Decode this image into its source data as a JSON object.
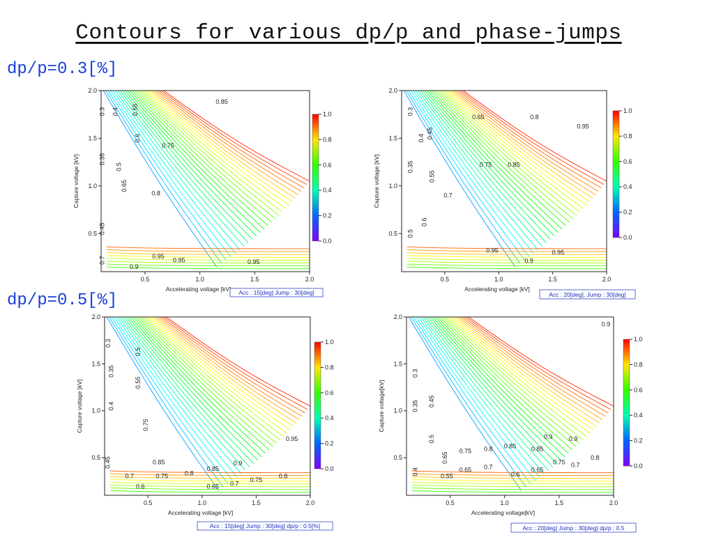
{
  "page": {
    "title": "Contours for various dp/p and phase-jumps"
  },
  "sections": [
    {
      "label": "dp/p=0.3[%]"
    },
    {
      "label": "dp/p=0.5[%]"
    }
  ],
  "chart_data": [
    {
      "type": "contour",
      "xlabel": "Accelerating voltage [kV]",
      "ylabel": "Capture voltage [kV]",
      "xlim": [
        0.1,
        2.0
      ],
      "ylim": [
        0.1,
        2.0
      ],
      "xticks": [
        0.5,
        1.0,
        1.5,
        2.0
      ],
      "yticks": [
        0.5,
        1.0,
        1.5,
        2.0
      ],
      "colorbar": {
        "min": 0.0,
        "max": 1.0,
        "ticks": [
          0.0,
          0.2,
          0.4,
          0.6,
          0.8,
          1.0
        ]
      },
      "caption": "Acc : 15[deg]  Jump : 30[deg]",
      "contour_labels": [
        {
          "text": "0.3",
          "x": 0.13,
          "y": 1.78,
          "rot": -90
        },
        {
          "text": "0.4",
          "x": 0.25,
          "y": 1.78,
          "rot": -90
        },
        {
          "text": "0.55",
          "x": 0.43,
          "y": 1.8,
          "rot": -90
        },
        {
          "text": "0.35",
          "x": 0.13,
          "y": 1.28,
          "rot": -90
        },
        {
          "text": "0.5",
          "x": 0.28,
          "y": 1.2,
          "rot": -90
        },
        {
          "text": "0.6",
          "x": 0.45,
          "y": 1.5,
          "rot": -90
        },
        {
          "text": "0.75",
          "x": 0.71,
          "y": 1.4,
          "rot": 0
        },
        {
          "text": "0.65",
          "x": 0.33,
          "y": 1.0,
          "rot": -90
        },
        {
          "text": "0.8",
          "x": 0.6,
          "y": 0.9,
          "rot": 0
        },
        {
          "text": "0.45",
          "x": 0.13,
          "y": 0.55,
          "rot": -90
        },
        {
          "text": "0.85",
          "x": 1.2,
          "y": 1.86,
          "rot": 0
        },
        {
          "text": "0.7",
          "x": 0.13,
          "y": 0.22,
          "rot": -90
        },
        {
          "text": "0.95",
          "x": 0.62,
          "y": 0.24,
          "rot": 0
        },
        {
          "text": "0.95",
          "x": 0.81,
          "y": 0.2,
          "rot": 0
        },
        {
          "text": "0.95",
          "x": 1.49,
          "y": 0.18,
          "rot": 0
        },
        {
          "text": "0.9",
          "x": 0.4,
          "y": 0.13,
          "rot": 0
        }
      ]
    },
    {
      "type": "contour",
      "xlabel": "Accelerating voltage [kV]",
      "ylabel": "Capture voltage [kV]",
      "xlim": [
        0.1,
        2.0
      ],
      "ylim": [
        0.1,
        2.0
      ],
      "xticks": [
        0.5,
        1.0,
        1.5,
        2.0
      ],
      "yticks": [
        0.5,
        1.0,
        1.5,
        2.0
      ],
      "colorbar": {
        "min": 0.0,
        "max": 1.0,
        "ticks": [
          0.0,
          0.2,
          0.4,
          0.6,
          0.8,
          1.0
        ]
      },
      "caption": "Acc : 20[deg], Jump : 30[deg]",
      "contour_labels": [
        {
          "text": "0.3",
          "x": 0.2,
          "y": 1.78,
          "rot": -90
        },
        {
          "text": "0.4",
          "x": 0.3,
          "y": 1.5,
          "rot": -90
        },
        {
          "text": "0.45",
          "x": 0.38,
          "y": 1.55,
          "rot": -90
        },
        {
          "text": "0.65",
          "x": 0.81,
          "y": 1.7,
          "rot": 0
        },
        {
          "text": "0.8",
          "x": 1.33,
          "y": 1.7,
          "rot": 0
        },
        {
          "text": "0.95",
          "x": 1.78,
          "y": 1.6,
          "rot": 0
        },
        {
          "text": "0.35",
          "x": 0.2,
          "y": 1.2,
          "rot": -90
        },
        {
          "text": "0.75",
          "x": 0.88,
          "y": 1.2,
          "rot": 0
        },
        {
          "text": "0.85",
          "x": 1.14,
          "y": 1.2,
          "rot": 0
        },
        {
          "text": "0.55",
          "x": 0.4,
          "y": 1.1,
          "rot": -90
        },
        {
          "text": "0.7",
          "x": 0.53,
          "y": 0.88,
          "rot": 0
        },
        {
          "text": "0.6",
          "x": 0.33,
          "y": 0.62,
          "rot": -90
        },
        {
          "text": "0.5",
          "x": 0.2,
          "y": 0.5,
          "rot": -90
        },
        {
          "text": "0.95",
          "x": 0.94,
          "y": 0.3,
          "rot": 0
        },
        {
          "text": "0.95",
          "x": 1.55,
          "y": 0.28,
          "rot": 0
        },
        {
          "text": "0.9",
          "x": 1.28,
          "y": 0.19,
          "rot": 0
        }
      ]
    },
    {
      "type": "contour",
      "xlabel": "Accelerating voltage [kV]",
      "ylabel": "Capture voltage [kV]",
      "xlim": [
        0.1,
        2.0
      ],
      "ylim": [
        0.1,
        2.0
      ],
      "xticks": [
        0.5,
        1.0,
        1.5,
        2.0
      ],
      "yticks": [
        0.5,
        1.0,
        1.5,
        2.0
      ],
      "colorbar": {
        "min": 0.0,
        "max": 1.0,
        "ticks": [
          0.0,
          0.2,
          0.4,
          0.6,
          0.8,
          1.0
        ]
      },
      "caption": "Acc : 15[deg]  Jump : 30[deg]  dp/p : 0.5[%]",
      "contour_labels": [
        {
          "text": "0.3",
          "x": 0.15,
          "y": 1.72,
          "rot": -90
        },
        {
          "text": "0.5",
          "x": 0.43,
          "y": 1.63,
          "rot": -90
        },
        {
          "text": "0.35",
          "x": 0.18,
          "y": 1.42,
          "rot": -90
        },
        {
          "text": "0.55",
          "x": 0.43,
          "y": 1.3,
          "rot": -90
        },
        {
          "text": "0.4",
          "x": 0.18,
          "y": 1.05,
          "rot": -90
        },
        {
          "text": "0.75",
          "x": 0.5,
          "y": 0.85,
          "rot": -90
        },
        {
          "text": "0.95",
          "x": 1.83,
          "y": 0.68,
          "rot": 0
        },
        {
          "text": "0.45",
          "x": 0.15,
          "y": 0.45,
          "rot": -90
        },
        {
          "text": "0.85",
          "x": 0.6,
          "y": 0.43,
          "rot": 0
        },
        {
          "text": "0.9",
          "x": 1.33,
          "y": 0.42,
          "rot": 0
        },
        {
          "text": "0.7",
          "x": 0.33,
          "y": 0.28,
          "rot": 0
        },
        {
          "text": "0.75",
          "x": 0.63,
          "y": 0.28,
          "rot": 0
        },
        {
          "text": "0.8",
          "x": 0.88,
          "y": 0.31,
          "rot": 0
        },
        {
          "text": "0.85",
          "x": 1.1,
          "y": 0.36,
          "rot": 0
        },
        {
          "text": "0.8",
          "x": 1.75,
          "y": 0.28,
          "rot": 0
        },
        {
          "text": "0.75",
          "x": 1.5,
          "y": 0.24,
          "rot": 0
        },
        {
          "text": "0.7",
          "x": 1.3,
          "y": 0.2,
          "rot": 0
        },
        {
          "text": "0.65",
          "x": 1.1,
          "y": 0.17,
          "rot": 0
        },
        {
          "text": "0.6",
          "x": 0.43,
          "y": 0.17,
          "rot": 0
        }
      ]
    },
    {
      "type": "contour",
      "xlabel": "Accelerating voltage[kV]",
      "ylabel": "Capture voltage[kV]",
      "xlim": [
        0.1,
        2.0
      ],
      "ylim": [
        0.1,
        2.0
      ],
      "xticks": [
        0.5,
        1.0,
        1.5,
        2.0
      ],
      "yticks": [
        0.5,
        1.0,
        1.5,
        2.0
      ],
      "colorbar": {
        "min": 0.0,
        "max": 1.0,
        "ticks": [
          0.0,
          0.2,
          0.4,
          0.6,
          0.8,
          1.0
        ]
      },
      "caption": "Acc : 20[deg]  Jump : 30[deg]  dp/p : 0.5",
      "contour_labels": [
        {
          "text": "0.9",
          "x": 1.93,
          "y": 1.9,
          "rot": 0
        },
        {
          "text": "0.3",
          "x": 0.2,
          "y": 1.4,
          "rot": -90
        },
        {
          "text": "0.45",
          "x": 0.35,
          "y": 1.1,
          "rot": -90
        },
        {
          "text": "0.35",
          "x": 0.2,
          "y": 1.05,
          "rot": -90
        },
        {
          "text": "0.5",
          "x": 0.35,
          "y": 0.7,
          "rot": -90
        },
        {
          "text": "0.9",
          "x": 1.4,
          "y": 0.7,
          "rot": 0
        },
        {
          "text": "0.9",
          "x": 1.63,
          "y": 0.68,
          "rot": 0
        },
        {
          "text": "0.75",
          "x": 0.64,
          "y": 0.55,
          "rot": 0
        },
        {
          "text": "0.8",
          "x": 0.85,
          "y": 0.57,
          "rot": 0
        },
        {
          "text": "0.85",
          "x": 1.05,
          "y": 0.6,
          "rot": 0
        },
        {
          "text": "0.85",
          "x": 1.3,
          "y": 0.57,
          "rot": 0
        },
        {
          "text": "0.65",
          "x": 0.47,
          "y": 0.5,
          "rot": -90
        },
        {
          "text": "0.8",
          "x": 1.83,
          "y": 0.48,
          "rot": 0
        },
        {
          "text": "0.75",
          "x": 1.5,
          "y": 0.43,
          "rot": 0
        },
        {
          "text": "0.7",
          "x": 1.65,
          "y": 0.4,
          "rot": 0
        },
        {
          "text": "0.7",
          "x": 0.85,
          "y": 0.38,
          "rot": 0
        },
        {
          "text": "0.65",
          "x": 0.64,
          "y": 0.35,
          "rot": 0
        },
        {
          "text": "0.65",
          "x": 1.3,
          "y": 0.35,
          "rot": 0
        },
        {
          "text": "0.6",
          "x": 1.1,
          "y": 0.3,
          "rot": 0
        },
        {
          "text": "0.55",
          "x": 0.47,
          "y": 0.28,
          "rot": 0
        },
        {
          "text": "0.4",
          "x": 0.2,
          "y": 0.35,
          "rot": -90
        }
      ]
    }
  ]
}
